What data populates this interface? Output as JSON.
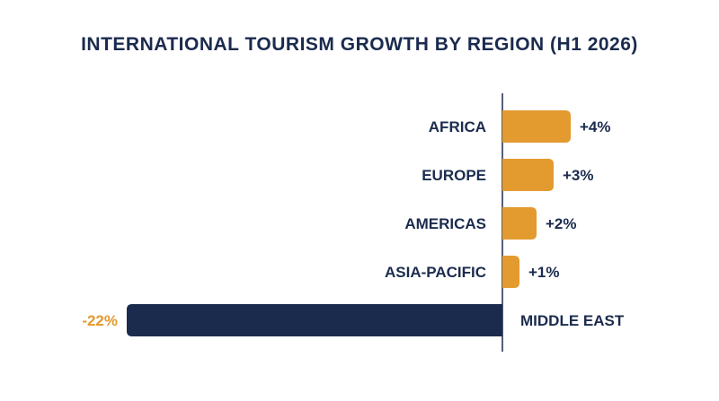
{
  "colors": {
    "positive": "#E39A2F",
    "negative": "#1B2B4E",
    "text": "#1B2B4E",
    "axis": "#1B2B4E",
    "background": "#FFFFFF"
  },
  "chart_data": {
    "type": "bar",
    "orientation": "horizontal",
    "title": "INTERNATIONAL TOURISM GROWTH BY REGION (H1 2026)",
    "categories": [
      "AFRICA",
      "EUROPE",
      "AMERICAS",
      "ASIA-PACIFIC",
      "MIDDLE EAST"
    ],
    "values": [
      4,
      3,
      2,
      1,
      -22
    ],
    "value_labels": [
      "+4%",
      "+3%",
      "+2%",
      "+1%",
      "-22%"
    ],
    "unit": "%",
    "xlim": [
      -22,
      4
    ],
    "grid": false,
    "legend": "none"
  }
}
